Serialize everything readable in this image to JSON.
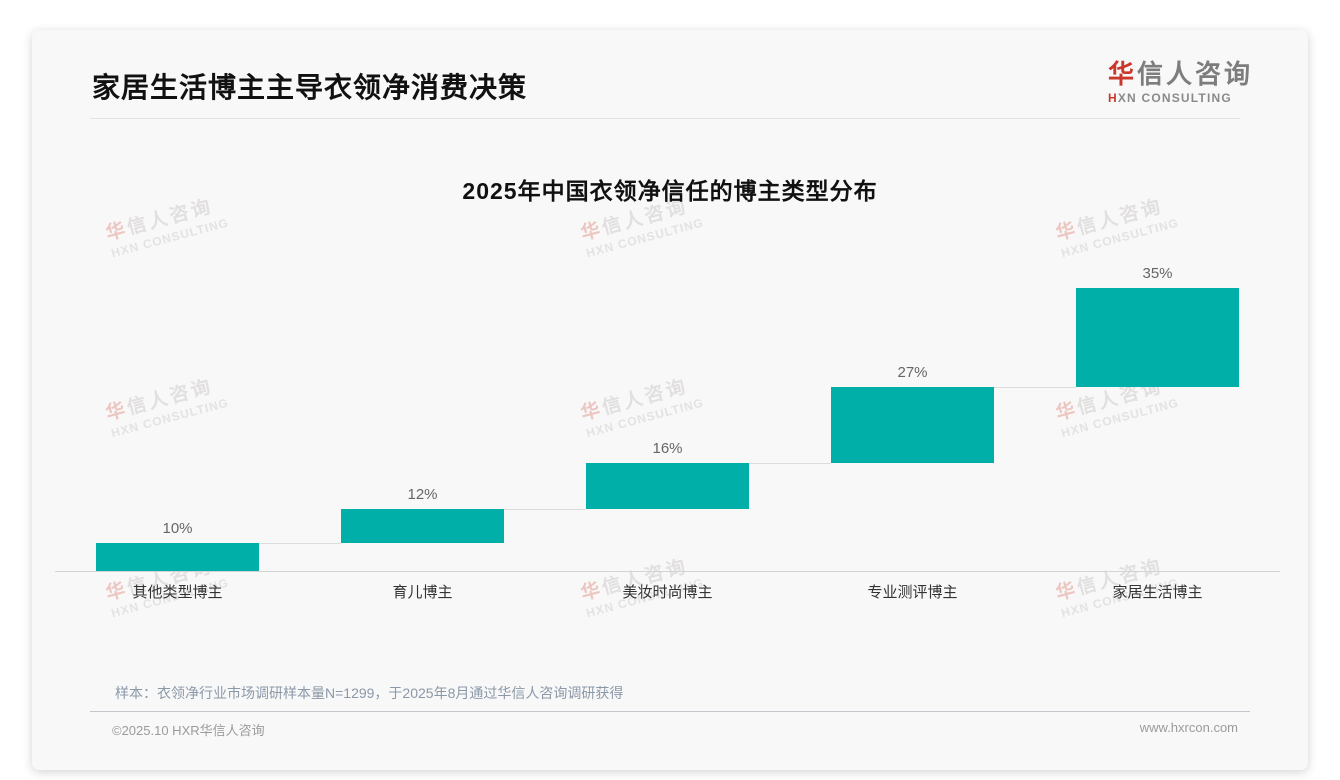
{
  "page": {
    "title": "家居生活博主主导衣领净消费决策",
    "logo": {
      "cn_first": "华",
      "cn_rest": "信人咨询",
      "en_first": "H",
      "en_rest": "XN CONSULTING"
    },
    "watermark": {
      "cn": "华信人咨询",
      "en": "HXN CONSULTING"
    },
    "note": "样本：衣领净行业市场调研样本量N=1299，于2025年8月通过华信人咨询调研获得",
    "footer": {
      "left": "©2025.10 HXR华信人咨询",
      "right": "www.hxrcon.com"
    },
    "colors": {
      "brand_red": "#c9382b",
      "bar_teal": "#00afa8"
    }
  },
  "chart_data": {
    "type": "bar",
    "variant": "waterfall-steps",
    "cumulative": true,
    "title": "2025年中国衣领净信任的博主类型分布",
    "categories": [
      "其他类型博主",
      "育儿博主",
      "美妆时尚博主",
      "专业测评博主",
      "家居生活博主"
    ],
    "values": [
      10,
      12,
      16,
      27,
      35
    ],
    "value_labels": [
      "10%",
      "12%",
      "16%",
      "27%",
      "35%"
    ],
    "unit": "%",
    "xlabel": "",
    "ylabel": "",
    "ylim": [
      0,
      100
    ],
    "grid": false,
    "legend": false,
    "bar_color": "#00afa8",
    "value_label_color": "#666666",
    "baseline_color": "#d4d4d4",
    "connector_color": "#dcdcdc"
  }
}
